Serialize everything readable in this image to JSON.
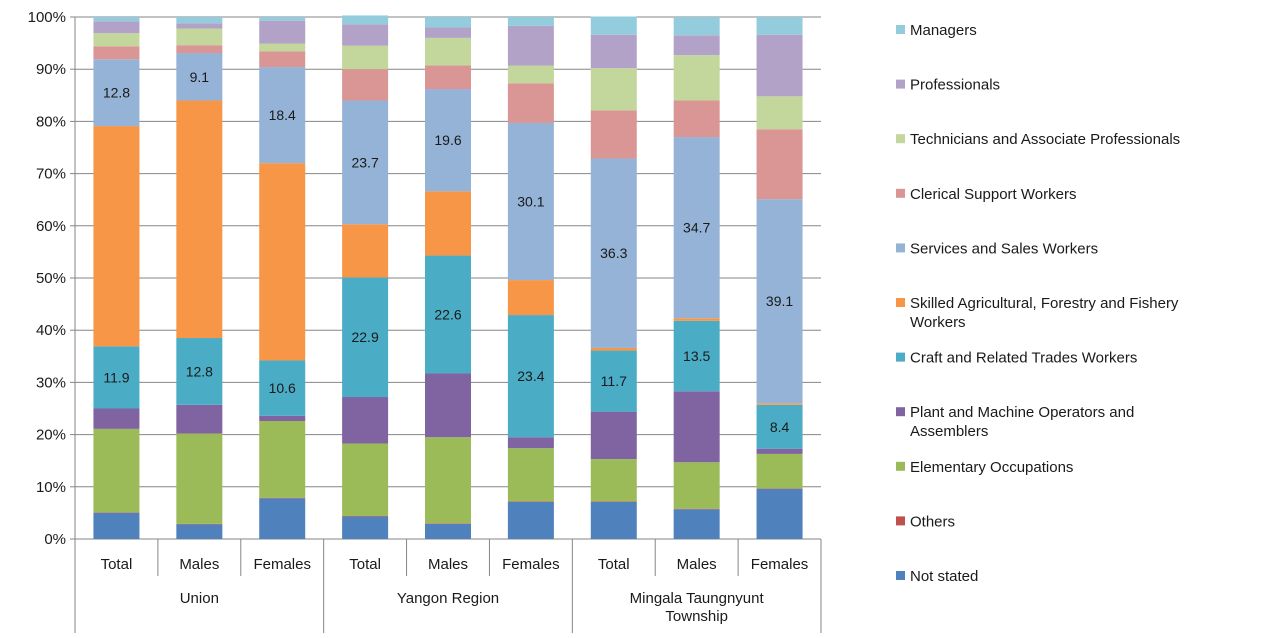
{
  "chart_data": {
    "type": "bar",
    "stacked": true,
    "percent_stacked": true,
    "y_ticks": [
      "0%",
      "10%",
      "20%",
      "30%",
      "40%",
      "50%",
      "60%",
      "70%",
      "80%",
      "90%",
      "100%"
    ],
    "ylim": [
      0,
      100
    ],
    "grid": true,
    "legend_position": "right",
    "categories": [
      "Total",
      "Males",
      "Females",
      "Total",
      "Males",
      "Females",
      "Total",
      "Males",
      "Females"
    ],
    "groups": [
      {
        "label": "Union",
        "span": 3
      },
      {
        "label": "Yangon Region",
        "span": 3
      },
      {
        "label": "Mingala Taungnyunt Township",
        "lines": [
          "Mingala Taungnyunt",
          "Township"
        ],
        "span": 3
      }
    ],
    "series": [
      {
        "name": "Not stated",
        "color": "#4f81bd",
        "values": [
          5.0,
          2.8,
          7.8,
          4.3,
          2.9,
          7.1,
          7.1,
          5.7,
          9.6
        ]
      },
      {
        "name": "Others",
        "color": "#c0504d",
        "values": [
          0.1,
          0.1,
          0.1,
          0.1,
          0.1,
          0.1,
          0.1,
          0.1,
          0.1
        ]
      },
      {
        "name": "Elementary Occupations",
        "color": "#9bbb59",
        "values": [
          16.0,
          17.3,
          14.7,
          13.9,
          16.5,
          10.2,
          8.1,
          8.9,
          6.6
        ]
      },
      {
        "name": "Plant and Machine Operators and Assemblers",
        "lines": [
          "Plant and Machine Operators and",
          "Assemblers"
        ],
        "color": "#8064a2",
        "values": [
          3.9,
          5.5,
          1.0,
          8.9,
          12.2,
          2.1,
          9.1,
          13.6,
          1.0
        ]
      },
      {
        "name": "Craft and Related Trades Workers",
        "color": "#4bacc6",
        "values": [
          11.9,
          12.8,
          10.6,
          22.9,
          22.6,
          23.4,
          11.7,
          13.5,
          8.4
        ]
      },
      {
        "name": "Skilled Agricultural, Forestry and Fishery Workers",
        "lines": [
          "Skilled Agricultural, Forestry and Fishery",
          "Workers"
        ],
        "color": "#f79646",
        "values": [
          42.2,
          45.5,
          37.8,
          10.2,
          12.3,
          6.7,
          0.5,
          0.5,
          0.3
        ]
      },
      {
        "name": "Services and Sales Workers",
        "color": "#95b3d7",
        "values": [
          12.8,
          9.1,
          18.4,
          23.7,
          19.6,
          30.1,
          36.3,
          34.7,
          39.1
        ]
      },
      {
        "name": "Clerical Support Workers",
        "color": "#d99694",
        "values": [
          2.5,
          1.5,
          3.0,
          6.0,
          4.5,
          7.6,
          9.2,
          7.0,
          13.4
        ]
      },
      {
        "name": "Technicians and Associate Professionals",
        "color": "#c3d69b",
        "values": [
          2.5,
          3.2,
          1.5,
          4.5,
          5.3,
          3.4,
          8.1,
          8.7,
          6.3
        ]
      },
      {
        "name": "Professionals",
        "color": "#b3a2c7",
        "values": [
          2.3,
          1.0,
          4.4,
          4.1,
          2.0,
          7.6,
          6.4,
          3.8,
          11.8
        ]
      },
      {
        "name": "Managers",
        "color": "#93cddd",
        "values": [
          0.8,
          1.2,
          0.7,
          1.7,
          2.0,
          1.7,
          3.5,
          3.5,
          3.4
        ]
      }
    ],
    "data_labels": [
      {
        "series": "Craft and Related Trades Workers",
        "bar": 0,
        "text": "11.9"
      },
      {
        "series": "Services and Sales Workers",
        "bar": 0,
        "text": "12.8"
      },
      {
        "series": "Craft and Related Trades Workers",
        "bar": 1,
        "text": "12.8"
      },
      {
        "series": "Services and Sales Workers",
        "bar": 1,
        "text": "9.1"
      },
      {
        "series": "Craft and Related Trades Workers",
        "bar": 2,
        "text": "10.6"
      },
      {
        "series": "Services and Sales Workers",
        "bar": 2,
        "text": "18.4"
      },
      {
        "series": "Craft and Related Trades Workers",
        "bar": 3,
        "text": "22.9"
      },
      {
        "series": "Services and Sales Workers",
        "bar": 3,
        "text": "23.7"
      },
      {
        "series": "Craft and Related Trades Workers",
        "bar": 4,
        "text": "22.6"
      },
      {
        "series": "Services and Sales Workers",
        "bar": 4,
        "text": "19.6"
      },
      {
        "series": "Craft and Related Trades Workers",
        "bar": 5,
        "text": "23.4"
      },
      {
        "series": "Services and Sales Workers",
        "bar": 5,
        "text": "30.1"
      },
      {
        "series": "Craft and Related Trades Workers",
        "bar": 6,
        "text": "11.7"
      },
      {
        "series": "Services and Sales Workers",
        "bar": 6,
        "text": "36.3"
      },
      {
        "series": "Craft and Related Trades Workers",
        "bar": 7,
        "text": "13.5"
      },
      {
        "series": "Services and Sales Workers",
        "bar": 7,
        "text": "34.7"
      },
      {
        "series": "Craft and Related Trades Workers",
        "bar": 8,
        "text": "8.4"
      },
      {
        "series": "Services and Sales Workers",
        "bar": 8,
        "text": "39.1"
      }
    ],
    "legend_order": [
      "Managers",
      "Professionals",
      "Technicians and Associate Professionals",
      "Clerical Support Workers",
      "Services and Sales Workers",
      "Skilled Agricultural, Forestry and Fishery Workers",
      "Craft and Related Trades Workers",
      "Plant and Machine Operators and Assemblers",
      "Elementary Occupations",
      "Others",
      "Not stated"
    ]
  }
}
